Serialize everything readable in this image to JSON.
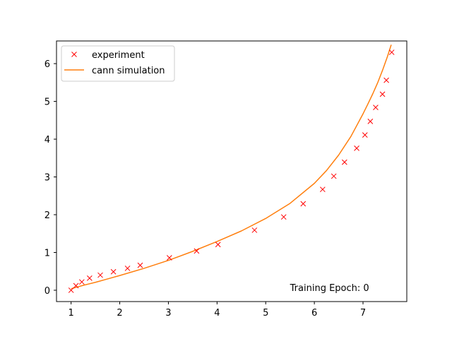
{
  "chart_data": {
    "type": "scatter",
    "title": "",
    "xlabel": "",
    "ylabel": "",
    "xlim": [
      0.7,
      7.9
    ],
    "ylim": [
      -0.3,
      6.6
    ],
    "xticks": [
      1,
      2,
      3,
      4,
      5,
      6,
      7
    ],
    "yticks": [
      0,
      1,
      2,
      3,
      4,
      5,
      6
    ],
    "grid": false,
    "legend_position": "top-left",
    "series": [
      {
        "name": "experiment",
        "kind": "scatter",
        "marker": "x",
        "color": "#ff0000",
        "x": [
          1.0,
          1.1,
          1.22,
          1.38,
          1.6,
          1.87,
          2.16,
          2.42,
          3.02,
          3.58,
          4.02,
          4.77,
          5.37,
          5.77,
          6.17,
          6.4,
          6.62,
          6.87,
          7.04,
          7.15,
          7.26,
          7.4,
          7.48,
          7.59
        ],
        "y": [
          0.0,
          0.12,
          0.22,
          0.32,
          0.4,
          0.49,
          0.58,
          0.66,
          0.86,
          1.04,
          1.21,
          1.59,
          1.94,
          2.29,
          2.67,
          3.02,
          3.39,
          3.76,
          4.11,
          4.47,
          4.84,
          5.19,
          5.56,
          6.3
        ]
      },
      {
        "name": "cann simulation",
        "kind": "line",
        "color": "#ff7f0e",
        "x": [
          1.0,
          1.25,
          1.5,
          1.75,
          2.0,
          2.5,
          3.0,
          3.5,
          4.0,
          4.5,
          5.0,
          5.5,
          6.0,
          6.25,
          6.5,
          6.75,
          7.0,
          7.1,
          7.2,
          7.3,
          7.4,
          7.5,
          7.58
        ],
        "y": [
          0.04,
          0.13,
          0.21,
          0.3,
          0.39,
          0.58,
          0.79,
          1.03,
          1.29,
          1.57,
          1.9,
          2.3,
          2.83,
          3.17,
          3.58,
          4.07,
          4.67,
          4.93,
          5.2,
          5.49,
          5.82,
          6.18,
          6.5
        ]
      }
    ],
    "annotations": [
      {
        "text": "Training Epoch: 0",
        "x": 5.5,
        "y": 0.0
      }
    ]
  }
}
